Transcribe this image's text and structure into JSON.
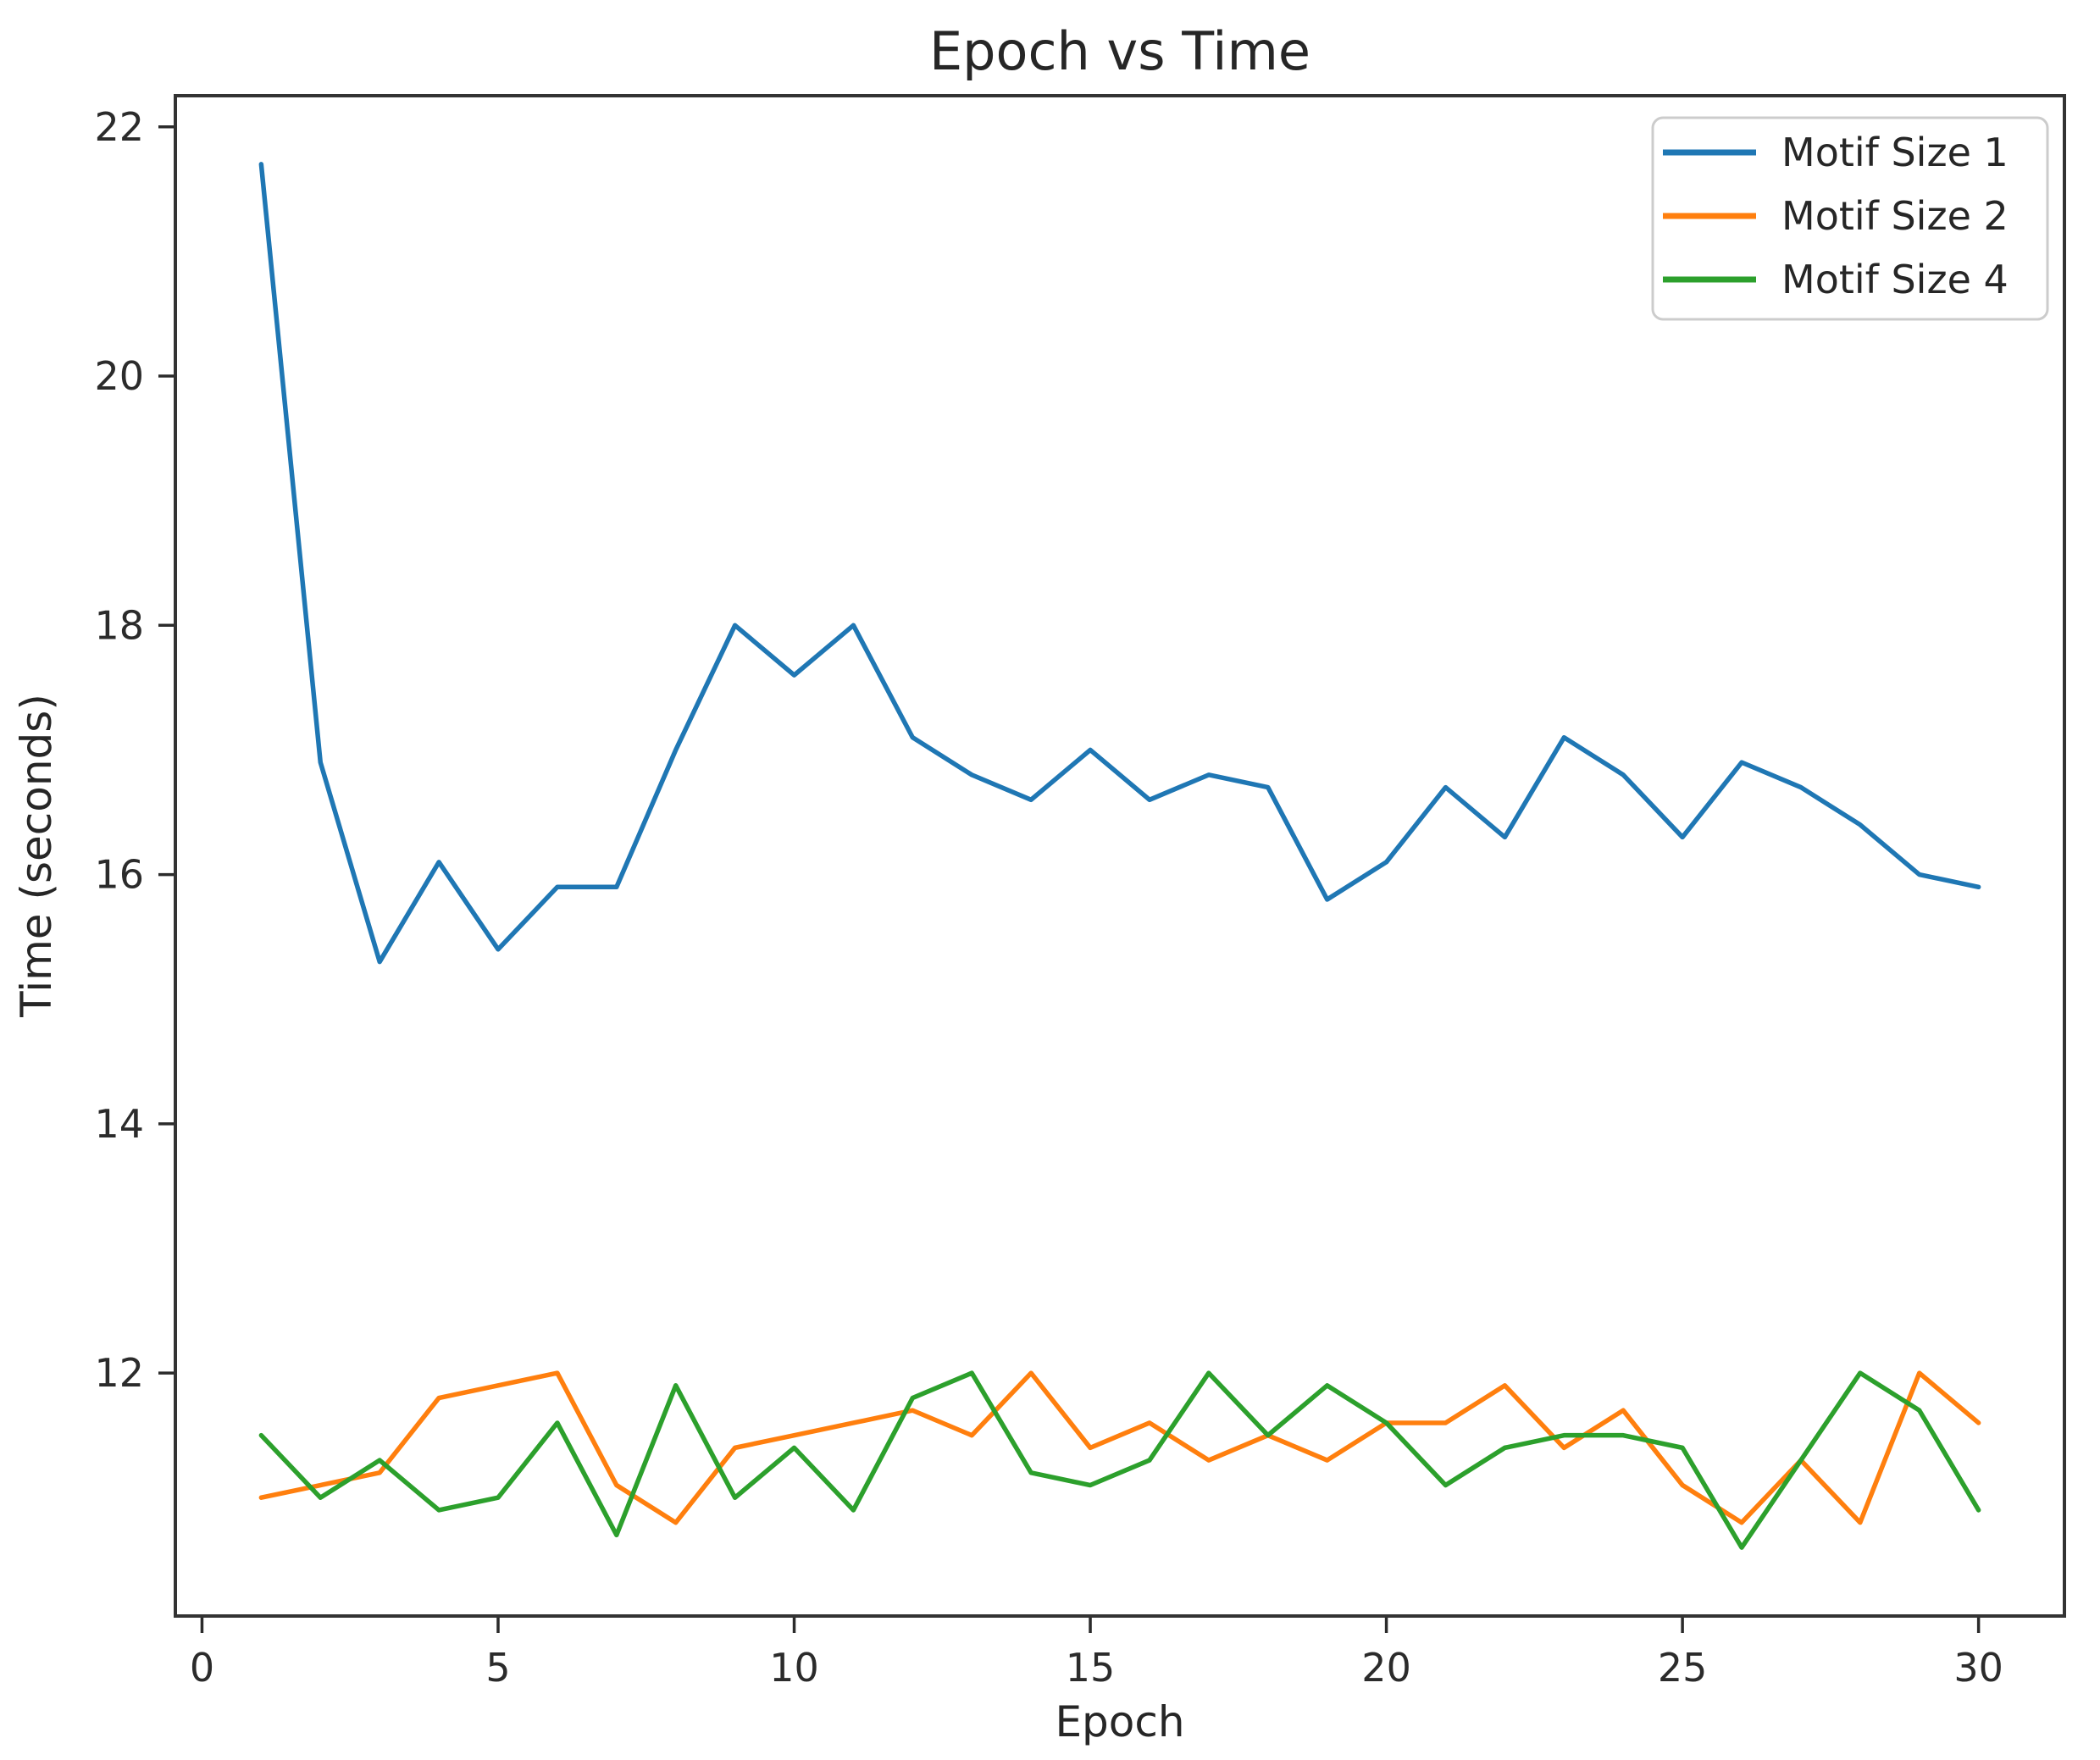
{
  "chart_data": {
    "type": "line",
    "title": "Epoch vs Time",
    "xlabel": "Epoch",
    "ylabel": "Time (seconds)",
    "x": [
      1,
      2,
      3,
      4,
      5,
      6,
      7,
      8,
      9,
      10,
      11,
      12,
      13,
      14,
      15,
      16,
      17,
      18,
      19,
      20,
      21,
      22,
      23,
      24,
      25,
      26,
      27,
      28,
      29,
      30
    ],
    "series": [
      {
        "name": "Motif Size 1",
        "color": "#1f77b4",
        "values": [
          21.7,
          16.9,
          15.3,
          16.1,
          15.4,
          15.9,
          15.9,
          17.0,
          18.0,
          17.6,
          18.0,
          17.1,
          16.8,
          16.6,
          17.0,
          16.6,
          16.8,
          16.7,
          15.8,
          16.1,
          16.7,
          16.3,
          17.1,
          16.8,
          16.3,
          16.9,
          16.7,
          16.4,
          16.0,
          15.9
        ]
      },
      {
        "name": "Motif Size 2",
        "color": "#ff7f0e",
        "values": [
          11.0,
          11.1,
          11.2,
          11.8,
          11.9,
          12.0,
          11.1,
          10.8,
          11.4,
          11.5,
          11.6,
          11.7,
          11.5,
          12.0,
          11.4,
          11.6,
          11.3,
          11.5,
          11.3,
          11.6,
          11.6,
          11.9,
          11.4,
          11.7,
          11.1,
          10.8,
          11.3,
          10.8,
          12.0,
          11.6
        ]
      },
      {
        "name": "Motif Size 4",
        "color": "#2ca02c",
        "values": [
          11.5,
          11.0,
          11.3,
          10.9,
          11.0,
          11.6,
          10.7,
          11.9,
          11.0,
          11.4,
          10.9,
          11.8,
          12.0,
          11.2,
          11.1,
          11.3,
          12.0,
          11.5,
          11.9,
          11.6,
          11.1,
          11.4,
          11.5,
          11.5,
          11.4,
          10.6,
          11.3,
          12.0,
          11.7,
          10.9
        ]
      }
    ],
    "xlim": [
      -0.45,
      31.45
    ],
    "ylim": [
      10.05,
      22.25
    ],
    "xticks": [
      0,
      5,
      10,
      15,
      20,
      25,
      30
    ],
    "yticks": [
      12,
      14,
      16,
      18,
      20,
      22
    ],
    "grid": false,
    "legend_position": "upper right",
    "spine_color": "#333333",
    "tick_color": "#2b2b2b",
    "legend_border_color": "#cccccc",
    "background_color": "#ffffff"
  }
}
